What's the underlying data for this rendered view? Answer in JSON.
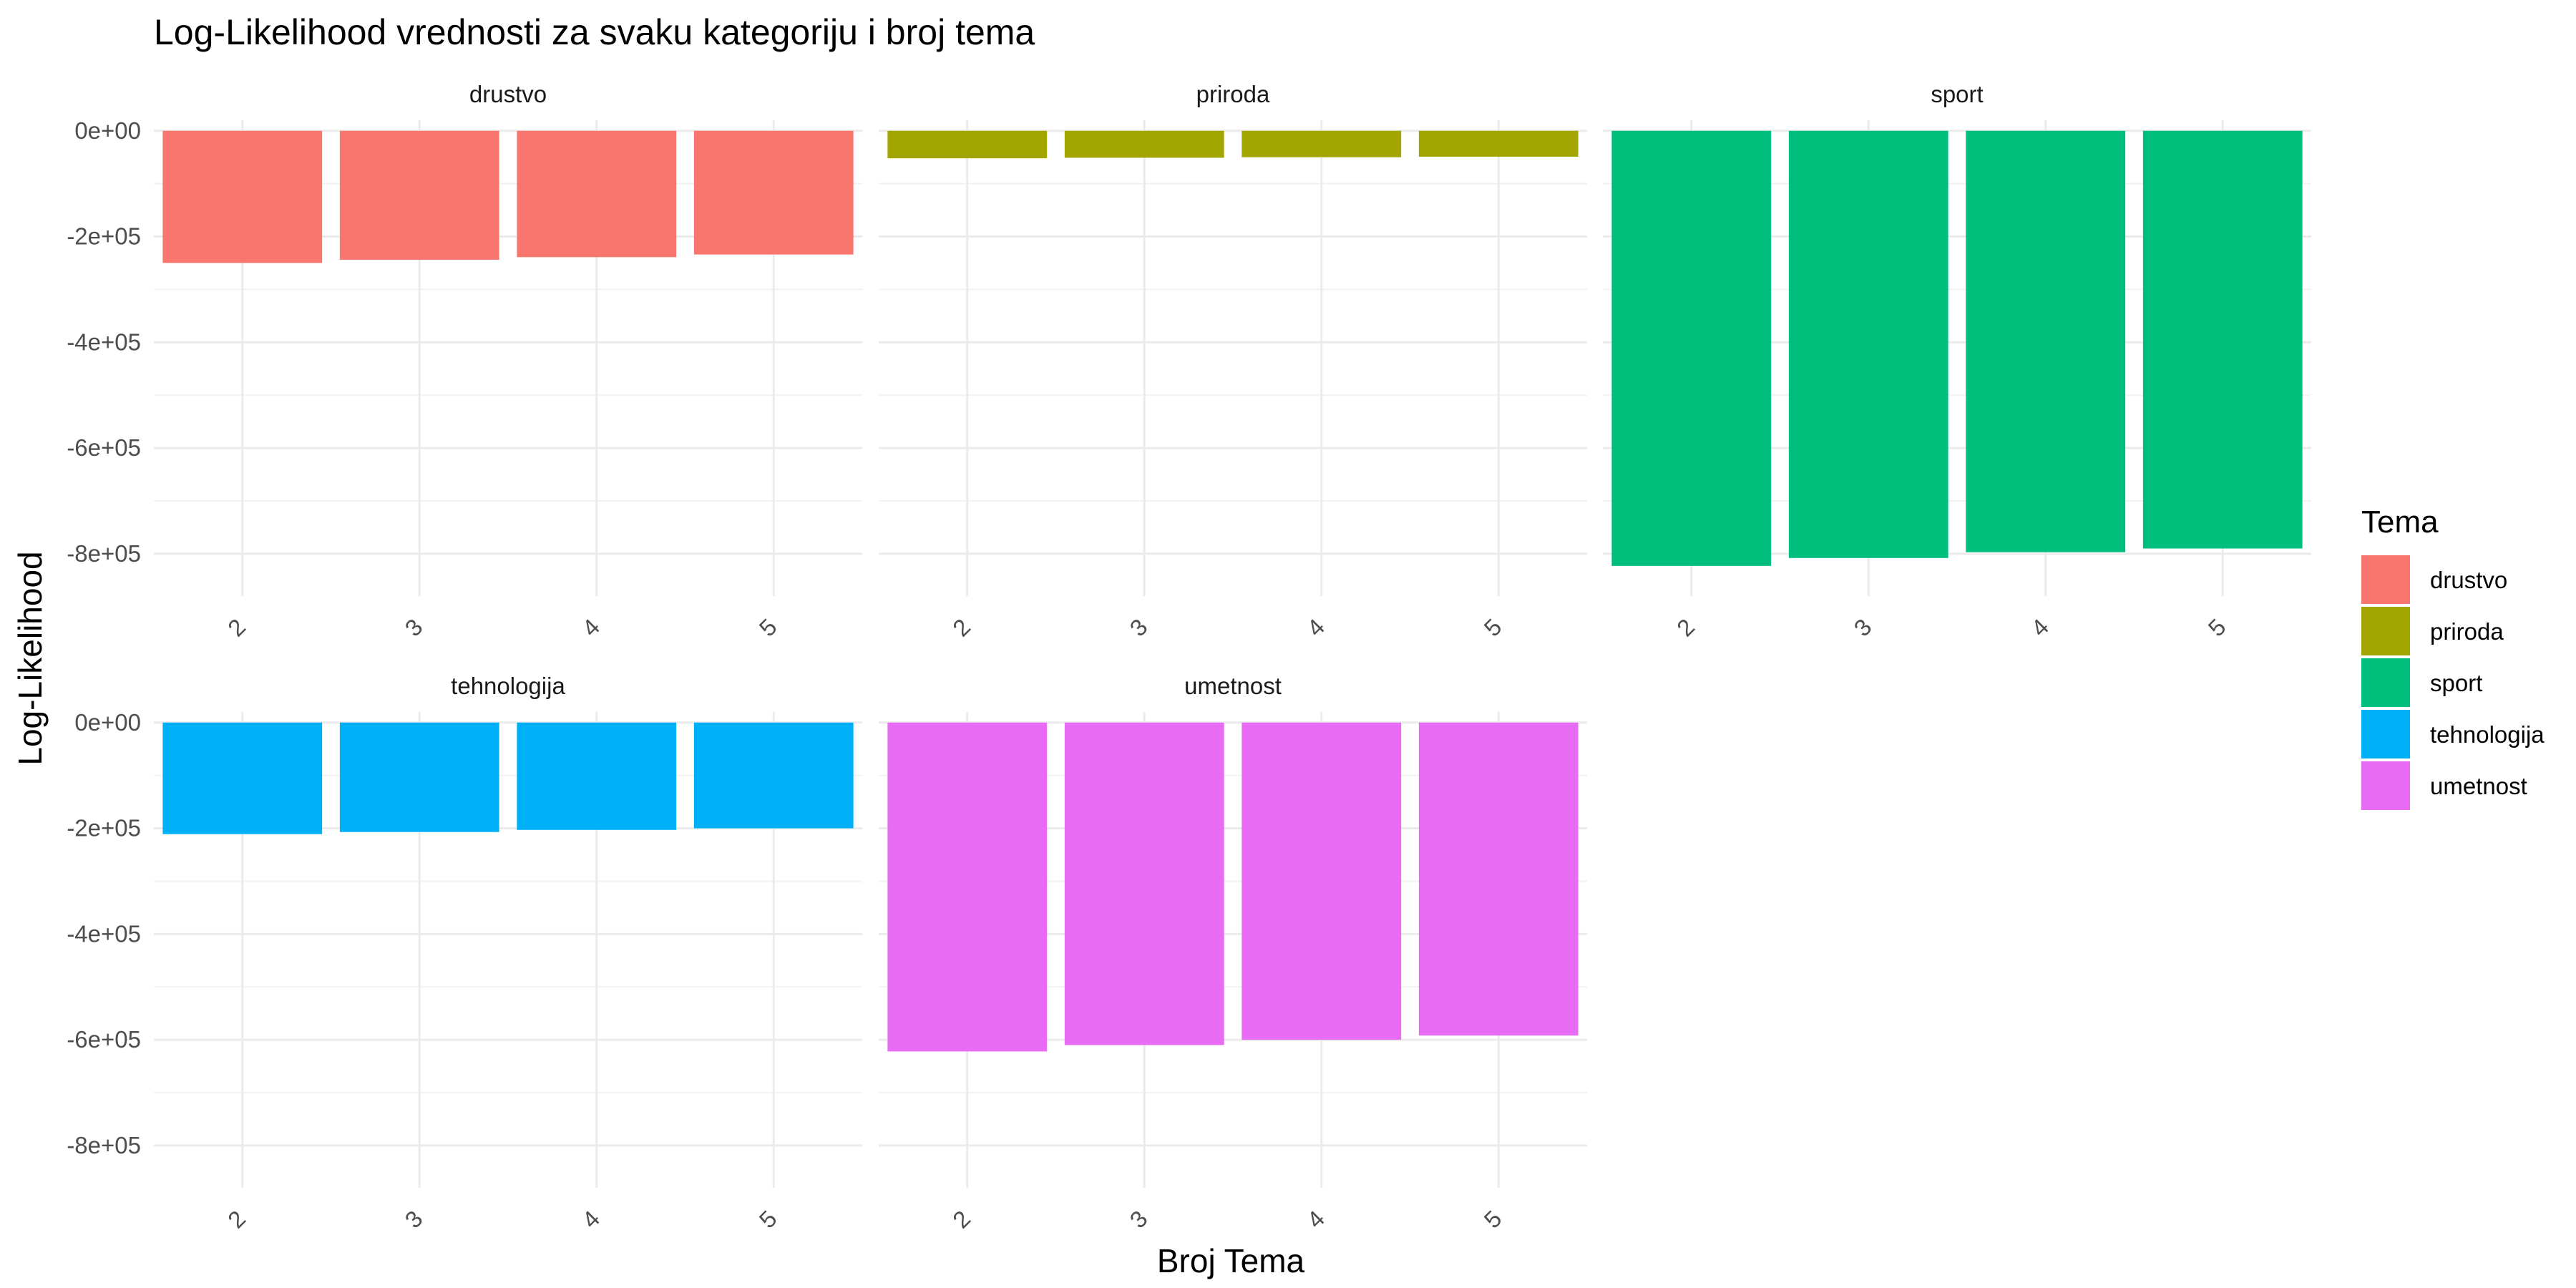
{
  "chart_data": {
    "type": "bar",
    "title": "Log-Likelihood vrednosti za svaku kategoriju i broj tema",
    "xlabel": "Broj Tema",
    "ylabel": "Log-Likelihood",
    "categories": [
      "2",
      "3",
      "4",
      "5"
    ],
    "ylim": [
      -880000,
      20000
    ],
    "y_ticks": [
      {
        "value": 0,
        "label": "0e+00"
      },
      {
        "value": -200000,
        "label": "-2e+05"
      },
      {
        "value": -400000,
        "label": "-4e+05"
      },
      {
        "value": -600000,
        "label": "-6e+05"
      },
      {
        "value": -800000,
        "label": "-8e+05"
      }
    ],
    "grid": true,
    "legend_position": "right",
    "legend_title": "Tema",
    "panels": [
      {
        "name": "drustvo",
        "color": "#F8766D",
        "values": [
          -250000,
          -244000,
          -239000,
          -234000
        ]
      },
      {
        "name": "priroda",
        "color": "#A3A500",
        "values": [
          -52000,
          -51000,
          -50000,
          -49000
        ]
      },
      {
        "name": "sport",
        "color": "#00BF7D",
        "values": [
          -823000,
          -808000,
          -797000,
          -790000
        ]
      },
      {
        "name": "tehnologija",
        "color": "#00B0F6",
        "values": [
          -211000,
          -207000,
          -203000,
          -200000
        ]
      },
      {
        "name": "umetnost",
        "color": "#E76BF3",
        "values": [
          -622000,
          -610000,
          -600000,
          -592000
        ]
      }
    ]
  }
}
